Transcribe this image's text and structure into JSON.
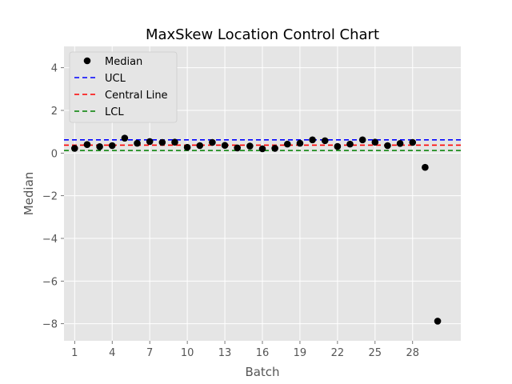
{
  "chart_data": {
    "type": "scatter",
    "title": "MaxSkew Location Control Chart",
    "xlabel": "Batch",
    "ylabel": "Median",
    "xlim": [
      0.15,
      31.85
    ],
    "ylim": [
      -8.8,
      5.0
    ],
    "xticks": [
      1,
      4,
      7,
      10,
      13,
      16,
      19,
      22,
      25,
      28
    ],
    "yticks": [
      -8,
      -6,
      -4,
      -2,
      0,
      2,
      4
    ],
    "ytick_labels": [
      "−8",
      "−6",
      "−4",
      "−2",
      "0",
      "2",
      "4"
    ],
    "grid": true,
    "legend_position": "top-left",
    "series": [
      {
        "name": "Median",
        "kind": "points",
        "color": "#000000",
        "x": [
          1,
          2,
          3,
          4,
          5,
          6,
          7,
          8,
          9,
          10,
          11,
          12,
          13,
          14,
          15,
          16,
          17,
          18,
          19,
          20,
          21,
          22,
          23,
          24,
          25,
          26,
          27,
          28,
          29,
          30
        ],
        "y": [
          0.22,
          0.4,
          0.3,
          0.35,
          0.7,
          0.46,
          0.54,
          0.5,
          0.51,
          0.27,
          0.35,
          0.5,
          0.36,
          0.24,
          0.33,
          0.2,
          0.22,
          0.42,
          0.46,
          0.62,
          0.58,
          0.31,
          0.42,
          0.62,
          0.51,
          0.35,
          0.45,
          0.5,
          -0.67,
          -7.88
        ]
      },
      {
        "name": "UCL",
        "kind": "hline",
        "color": "#0000ff",
        "y": 0.62
      },
      {
        "name": "Central Line",
        "kind": "hline",
        "color": "#ff0000",
        "y": 0.37
      },
      {
        "name": "LCL",
        "kind": "hline",
        "color": "#008000",
        "y": 0.12
      }
    ]
  }
}
